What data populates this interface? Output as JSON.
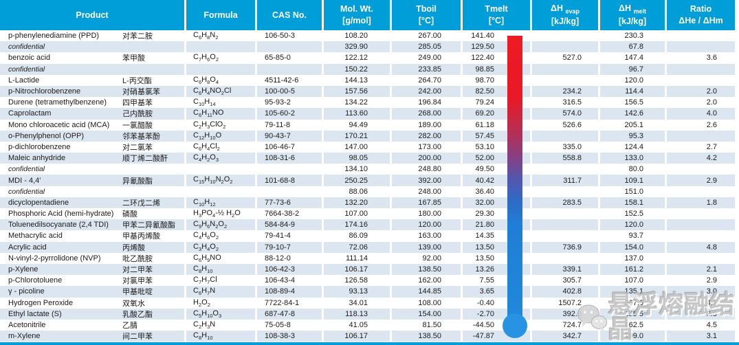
{
  "header": {
    "product": "Product",
    "formula": "Formula",
    "cas": "CAS No.",
    "molwt_l1": "Mol. Wt.",
    "molwt_l2": "[g/mol]",
    "tboil_l1": "Tboil",
    "tboil_l2": "[°C]",
    "tmelt_l1": "Tmelt",
    "tmelt_l2": "[°C]",
    "evap_l1": "ΔH",
    "evap_sub": "evap",
    "evap_l2": "[kJ/kg]",
    "melt_l1": "ΔH",
    "melt_sub": "melt",
    "melt_l2": "[kJ/kg]",
    "ratio_l1": "Ratio",
    "ratio_l2": "ΔHe / ΔHm"
  },
  "rows": [
    {
      "name": "p-phenylenediamine (PPD)",
      "zh": "对苯二胺",
      "formula": "C6H8N2",
      "cas": "106-50-3",
      "mw": "108.20",
      "tboil": "267.00",
      "tmelt": "141.40",
      "evap": "",
      "melt": "230.3",
      "ratio": "",
      "conf": false
    },
    {
      "name": "confidential",
      "zh": "",
      "formula": "",
      "cas": "",
      "mw": "329.90",
      "tboil": "285.05",
      "tmelt": "129.50",
      "evap": "",
      "melt": "67.8",
      "ratio": "",
      "conf": true
    },
    {
      "name": "benzoic acid",
      "zh": "苯甲酸",
      "formula": "C7H6O2",
      "cas": "65-85-0",
      "mw": "122.12",
      "tboil": "249.00",
      "tmelt": "122.40",
      "evap": "527.0",
      "melt": "147.4",
      "ratio": "3.6",
      "conf": false
    },
    {
      "name": "confidential",
      "zh": "",
      "formula": "",
      "cas": "",
      "mw": "150.22",
      "tboil": "233.85",
      "tmelt": "98.85",
      "evap": "",
      "melt": "96.7",
      "ratio": "",
      "conf": true
    },
    {
      "name": "L-Lactide",
      "zh": "L-丙交酯",
      "formula": "C6H8O4",
      "cas": "4511-42-6",
      "mw": "144.13",
      "tboil": "264.70",
      "tmelt": "98.70",
      "evap": "",
      "melt": "120.0",
      "ratio": "",
      "conf": false
    },
    {
      "name": "p-Nitrochlorobenzene",
      "zh": "对硝基氯苯",
      "formula": "C6H4NO2Cl",
      "cas": "100-00-5",
      "mw": "157.56",
      "tboil": "242.00",
      "tmelt": "82.50",
      "evap": "234.2",
      "melt": "114.4",
      "ratio": "2.0",
      "conf": false
    },
    {
      "name": "Durene (tetramethylbenzene)",
      "zh": "四甲基苯",
      "formula": "C10H14",
      "cas": "95-93-2",
      "mw": "134.22",
      "tboil": "196.84",
      "tmelt": "79.24",
      "evap": "316.5",
      "melt": "156.5",
      "ratio": "2.0",
      "conf": false
    },
    {
      "name": "Caprolactam",
      "zh": "己内酰胺",
      "formula": "C6H11NO",
      "cas": "105-60-2",
      "mw": "113.60",
      "tboil": "268.00",
      "tmelt": "69.20",
      "evap": "574.0",
      "melt": "142.6",
      "ratio": "4.0",
      "conf": false
    },
    {
      "name": "Mono chloroacetic acid (MCA)",
      "zh": "一氯醋酸",
      "formula": "C2H3ClO2",
      "cas": "79-11-8",
      "mw": "94.49",
      "tboil": "189.00",
      "tmelt": "61.18",
      "evap": "526.6",
      "melt": "205.1",
      "ratio": "2.6",
      "conf": false
    },
    {
      "name": "o-Phenylphenol (OPP)",
      "zh": "邻苯基苯酚",
      "formula": "C12H10O",
      "cas": "90-43-7",
      "mw": "170.21",
      "tboil": "282.00",
      "tmelt": "57.45",
      "evap": "",
      "melt": "95.3",
      "ratio": "",
      "conf": false
    },
    {
      "name": "p-dichlorobenzene",
      "zh": "对二氯苯",
      "formula": "C6H4Cl2",
      "cas": "106-46-7",
      "mw": "147.00",
      "tboil": "173.00",
      "tmelt": "53.10",
      "evap": "335.0",
      "melt": "124.4",
      "ratio": "2.7",
      "conf": false
    },
    {
      "name": "Maleic anhydride",
      "zh": "顺丁烯二酸酐",
      "formula": "C4H2O3",
      "cas": "108-31-6",
      "mw": "98.05",
      "tboil": "200.00",
      "tmelt": "52.00",
      "evap": "558.8",
      "melt": "133.0",
      "ratio": "4.2",
      "conf": false
    },
    {
      "name": "confidential",
      "zh": "",
      "formula": "",
      "cas": "",
      "mw": "134.10",
      "tboil": "248.80",
      "tmelt": "49.50",
      "evap": "",
      "melt": "80.0",
      "ratio": "",
      "conf": true
    },
    {
      "name": "MDI - 4,4'",
      "zh": "异氰酸酯",
      "formula": "C15H10N2O2",
      "cas": "101-68-8",
      "mw": "250.25",
      "tboil": "392.00",
      "tmelt": "40.42",
      "evap": "311.7",
      "melt": "109.1",
      "ratio": "2.9",
      "conf": false
    },
    {
      "name": "confidential",
      "zh": "",
      "formula": "",
      "cas": "",
      "mw": "88.06",
      "tboil": "248.00",
      "tmelt": "36.40",
      "evap": "",
      "melt": "151.0",
      "ratio": "",
      "conf": true
    },
    {
      "name": "dicyclopentadiene",
      "zh": "二环戊二烯",
      "formula": "C10H12",
      "cas": "77-73-6",
      "mw": "132.20",
      "tboil": "167.85",
      "tmelt": "32.00",
      "evap": "283.5",
      "melt": "158.1",
      "ratio": "1.8",
      "conf": false
    },
    {
      "name": "Phosphoric Acid (hemi-hydrate)",
      "zh": "磷酸",
      "formula": "H3PO4-½ H2O",
      "cas": "7664-38-2",
      "mw": "107.00",
      "tboil": "180.00",
      "tmelt": "29.30",
      "evap": "",
      "melt": "152.5",
      "ratio": "",
      "conf": false
    },
    {
      "name": "Toluenedilsocyanate (2,4 TDI)",
      "zh": "甲苯二异氰酸酯",
      "formula": "C9H6N2O2",
      "cas": "584-84-9",
      "mw": "174.16",
      "tboil": "120.00",
      "tmelt": "21.80",
      "evap": "",
      "melt": "120.0",
      "ratio": "",
      "conf": false
    },
    {
      "name": "Methacrylic acid",
      "zh": "甲基丙烯酸",
      "formula": "C4H6O2",
      "cas": "79-41-4",
      "mw": "86.09",
      "tboil": "163.00",
      "tmelt": "14.35",
      "evap": "",
      "melt": "93.7",
      "ratio": "",
      "conf": false
    },
    {
      "name": "Acrylic acid",
      "zh": "丙烯酸",
      "formula": "C3H4O2",
      "cas": "79-10-7",
      "mw": "72.06",
      "tboil": "139.00",
      "tmelt": "13.50",
      "evap": "736.9",
      "melt": "154.0",
      "ratio": "4.8",
      "conf": false
    },
    {
      "name": "N-vinyl-2-pyrrolidone (NVP)",
      "zh": "吡乙酰胺",
      "formula": "C6H9NO",
      "cas": "88-12-0",
      "mw": "111.14",
      "tboil": "92.00",
      "tmelt": "13.50",
      "evap": "",
      "melt": "137.0",
      "ratio": "",
      "conf": false
    },
    {
      "name": "p-Xylene",
      "zh": "对二甲苯",
      "formula": "C8H10",
      "cas": "106-42-3",
      "mw": "106.17",
      "tboil": "138.50",
      "tmelt": "13.26",
      "evap": "339.1",
      "melt": "161.2",
      "ratio": "2.1",
      "conf": false
    },
    {
      "name": "p-Chlorotoluene",
      "zh": "对氯甲苯",
      "formula": "C7H7Cl",
      "cas": "106-43-4",
      "mw": "126.58",
      "tboil": "162.00",
      "tmelt": "7.55",
      "evap": "305.7",
      "melt": "107.0",
      "ratio": "2.9",
      "conf": false
    },
    {
      "name": "γ - picoline",
      "zh": "甲基吡啶",
      "formula": "C6H7N",
      "cas": "108-89-4",
      "mw": "93.13",
      "tboil": "144.85",
      "tmelt": "3.65",
      "evap": "402.8",
      "melt": "135.1",
      "ratio": "3.0",
      "conf": false
    },
    {
      "name": "Hydrogen Peroxide",
      "zh": "双氧水",
      "formula": "H2O2",
      "cas": "7722-84-1",
      "mw": "34.01",
      "tboil": "108.00",
      "tmelt": "-0.40",
      "evap": "1507.2",
      "melt": "367.6",
      "ratio": "4.1",
      "conf": false
    },
    {
      "name": "Ethyl lactate (S)",
      "zh": "乳酸乙酯",
      "formula": "C5H10O3",
      "cas": "687-47-8",
      "mw": "118.13",
      "tboil": "154.00",
      "tmelt": "-2.70",
      "evap": "392.8",
      "melt": "155.5",
      "ratio": "2.5",
      "conf": false
    },
    {
      "name": "Acetonitrile",
      "zh": "乙腈",
      "formula": "C2H3N",
      "cas": "75-05-8",
      "mw": "41.05",
      "tboil": "81.50",
      "tmelt": "-44.50",
      "evap": "724.7",
      "melt": "162.5",
      "ratio": "4.5",
      "conf": false
    },
    {
      "name": "m-Xylene",
      "zh": "间二甲苯",
      "formula": "C8H10",
      "cas": "108-38-3",
      "mw": "106.17",
      "tboil": "138.50",
      "tmelt": "-47.87",
      "evap": "342.7",
      "melt": "109.0",
      "ratio": "3.1",
      "conf": false
    }
  ],
  "watermark": {
    "icon": "wechat-icon",
    "text": "悬浮熔融结晶"
  },
  "colors": {
    "header_blue": "#009ED8",
    "row_alt_blue": "#DCE6F1",
    "thermometer_top_red": "#EC1B24",
    "thermometer_bottom_blue": "#2189DC"
  }
}
